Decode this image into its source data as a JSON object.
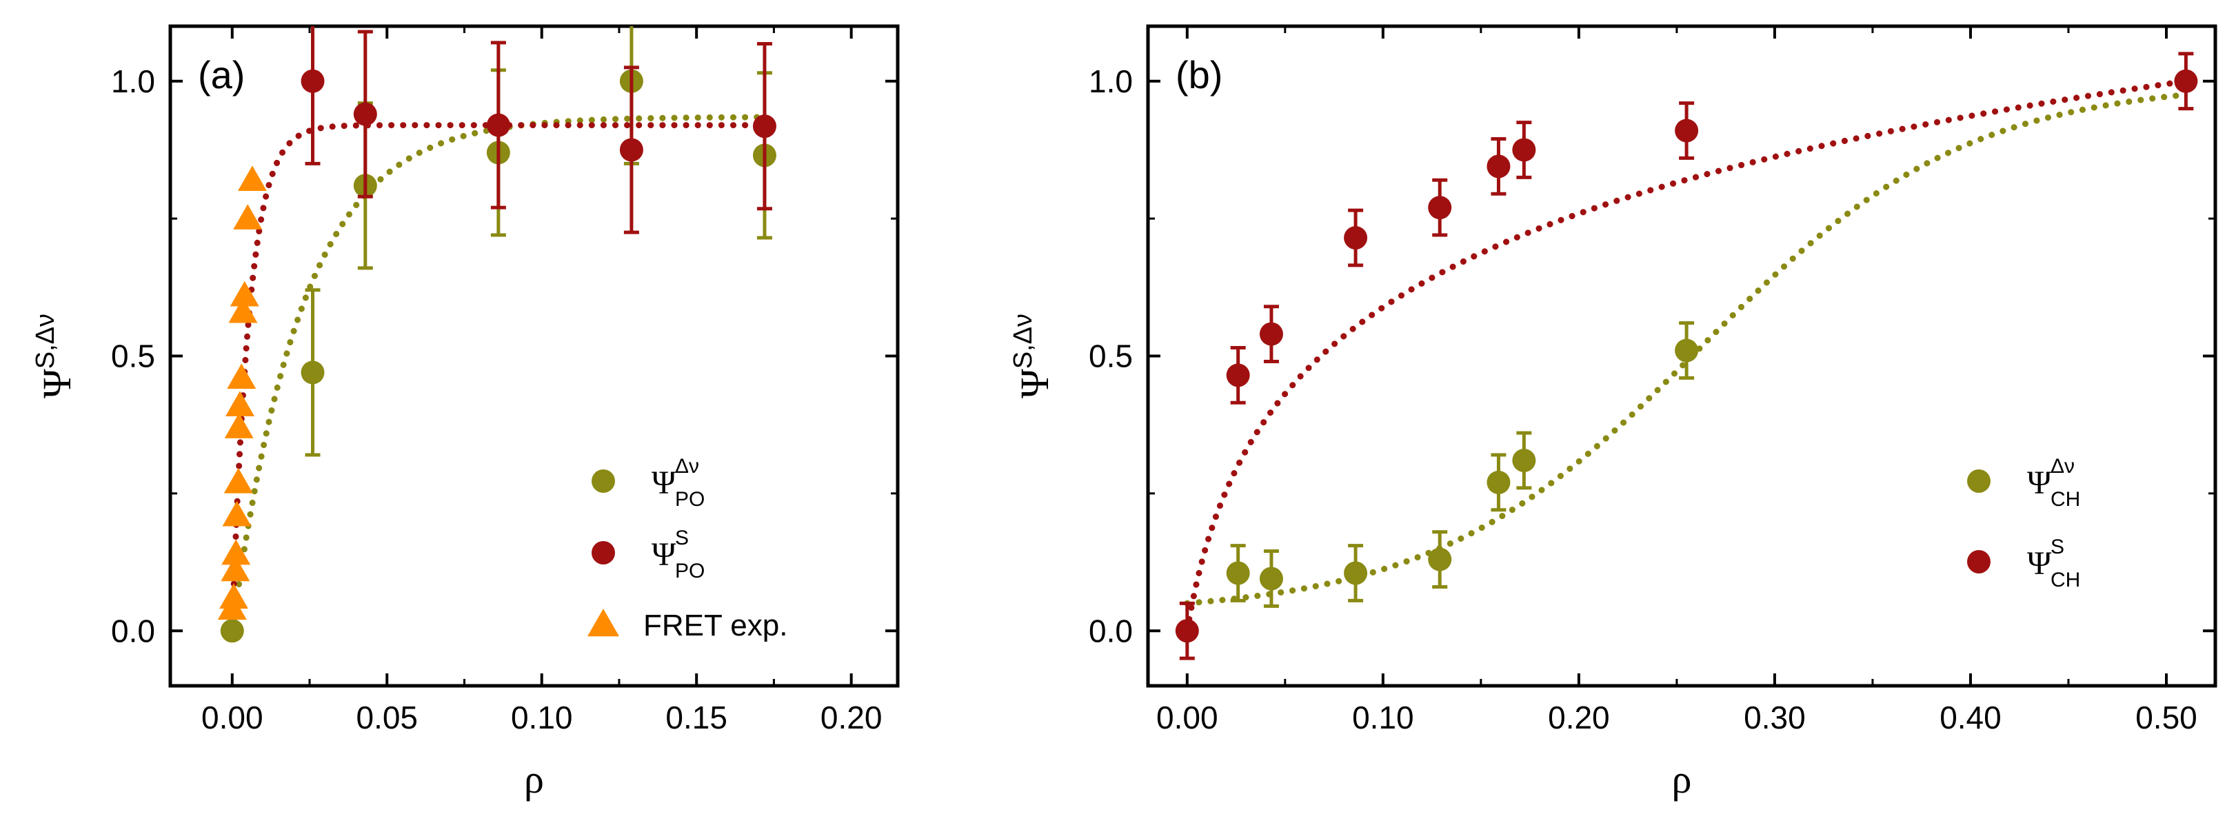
{
  "chart_data": [
    {
      "type": "scatter",
      "panel_label": "(a)",
      "xlabel": "ρ",
      "ylabel": {
        "base": "Ψ",
        "sup": "S,Δν"
      },
      "xlim": [
        -0.02,
        0.215
      ],
      "ylim": [
        -0.1,
        1.1
      ],
      "xticks": [
        0.0,
        0.05,
        0.1,
        0.15,
        0.2
      ],
      "xtick_labels": [
        "0.00",
        "0.05",
        "0.10",
        "0.15",
        "0.20"
      ],
      "yticks": [
        0.0,
        0.5,
        1.0
      ],
      "ytick_labels": [
        "0.0",
        "0.5",
        "1.0"
      ],
      "legend_position": "bottom-right",
      "series": [
        {
          "legend": {
            "base": "Ψ",
            "sup": "Δν",
            "sub": "PO"
          },
          "marker": "circle",
          "color": "#8a8a14",
          "x": [
            0.0,
            0.026,
            0.043,
            0.086,
            0.129,
            0.172
          ],
          "y": [
            0.0,
            0.47,
            0.81,
            0.87,
            1.0,
            0.865
          ],
          "yerr": [
            0.0,
            0.15,
            0.15,
            0.15,
            0.15,
            0.15
          ]
        },
        {
          "legend": {
            "base": "Ψ",
            "sup": "S",
            "sub": "PO"
          },
          "marker": "circle",
          "color": "#a01010",
          "x": [
            0.026,
            0.043,
            0.086,
            0.129,
            0.172
          ],
          "y": [
            1.0,
            0.94,
            0.92,
            0.875,
            0.918
          ],
          "yerr": [
            0.15,
            0.15,
            0.15,
            0.15,
            0.15
          ]
        },
        {
          "legend": {
            "text": "FRET exp."
          },
          "marker": "triangle",
          "color": "#ff8c00",
          "x": [
            0.0,
            0.0005,
            0.001,
            0.0012,
            0.0015,
            0.002,
            0.0022,
            0.0025,
            0.003,
            0.0035,
            0.004,
            0.005,
            0.0065
          ],
          "y": [
            0.04,
            0.06,
            0.11,
            0.14,
            0.21,
            0.27,
            0.37,
            0.41,
            0.46,
            0.58,
            0.61,
            0.75,
            0.82
          ]
        }
      ],
      "fits": [
        {
          "color": "#8a8a14",
          "model": "saturating",
          "a": 0.935,
          "k": 44,
          "x_start": 0.0,
          "x_end": 0.172
        },
        {
          "color": "#a01010",
          "model": "saturating",
          "a": 0.92,
          "k": 180,
          "x_start": 0.0,
          "x_end": 0.172
        }
      ]
    },
    {
      "type": "scatter",
      "panel_label": "(b)",
      "xlabel": "ρ",
      "ylabel": {
        "base": "Ψ",
        "sup": "S,Δν"
      },
      "xlim": [
        -0.02,
        0.525
      ],
      "ylim": [
        -0.1,
        1.1
      ],
      "xticks": [
        0.0,
        0.1,
        0.2,
        0.3,
        0.4,
        0.5
      ],
      "xtick_labels": [
        "0.00",
        "0.10",
        "0.20",
        "0.30",
        "0.40",
        "0.50"
      ],
      "yticks": [
        0.0,
        0.5,
        1.0
      ],
      "ytick_labels": [
        "0.0",
        "0.5",
        "1.0"
      ],
      "legend_position": "bottom-right",
      "series": [
        {
          "legend": {
            "base": "Ψ",
            "sup": "Δν",
            "sub": "CH"
          },
          "marker": "circle",
          "color": "#8a8a14",
          "x": [
            0.026,
            0.043,
            0.086,
            0.129,
            0.159,
            0.172,
            0.255
          ],
          "y": [
            0.105,
            0.095,
            0.105,
            0.13,
            0.27,
            0.31,
            0.51
          ],
          "yerr": [
            0.05,
            0.05,
            0.05,
            0.05,
            0.05,
            0.05,
            0.05
          ]
        },
        {
          "legend": {
            "base": "Ψ",
            "sup": "S",
            "sub": "CH"
          },
          "marker": "circle",
          "color": "#a01010",
          "x": [
            0.0,
            0.026,
            0.043,
            0.086,
            0.129,
            0.159,
            0.172,
            0.255,
            0.51
          ],
          "y": [
            0.0,
            0.465,
            0.54,
            0.715,
            0.77,
            0.845,
            0.875,
            0.91,
            1.0
          ],
          "yerr": [
            0.05,
            0.05,
            0.05,
            0.05,
            0.05,
            0.05,
            0.05,
            0.05,
            0.05
          ]
        }
      ],
      "fits": [
        {
          "color": "#8a8a14",
          "model": "sigmoid",
          "x_start": 0.0,
          "x_end": 0.51
        },
        {
          "color": "#a01010",
          "model": "log_rise",
          "x_start": 0.0,
          "x_end": 0.51
        }
      ]
    }
  ]
}
